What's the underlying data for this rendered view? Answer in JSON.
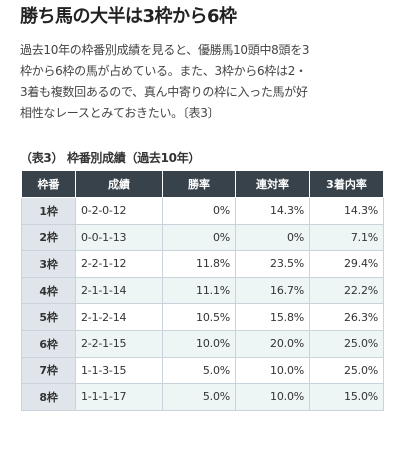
{
  "heading": "勝ち馬の大半は3枠から6枠",
  "paragraph_lines": [
    "過去10年の枠番別成績を見ると、優勝馬10頭中8頭を3",
    "枠から6枠の馬が占めている。また、3枠から6枠は2・",
    "3着も複数回あるので、真ん中寄りの枠に入った馬が好",
    "相性なレースとみておきたい。〔表3〕"
  ],
  "table_caption": "（表3） 枠番別成績（過去10年）",
  "table": {
    "headers": [
      "枠番",
      "成績",
      "勝率",
      "連対率",
      "3着内率"
    ],
    "rows": [
      [
        "1枠",
        "0-2-0-12",
        "0%",
        "14.3%",
        "14.3%"
      ],
      [
        "2枠",
        "0-0-1-13",
        "0%",
        "0%",
        "7.1%"
      ],
      [
        "3枠",
        "2-2-1-12",
        "11.8%",
        "23.5%",
        "29.4%"
      ],
      [
        "4枠",
        "2-1-1-14",
        "11.1%",
        "16.7%",
        "22.2%"
      ],
      [
        "5枠",
        "2-1-2-14",
        "10.5%",
        "15.8%",
        "26.3%"
      ],
      [
        "6枠",
        "2-2-1-15",
        "10.0%",
        "20.0%",
        "25.0%"
      ],
      [
        "7枠",
        "1-1-3-15",
        "5.0%",
        "10.0%",
        "25.0%"
      ],
      [
        "8枠",
        "1-1-1-17",
        "5.0%",
        "10.0%",
        "15.0%"
      ]
    ]
  },
  "colors": {
    "header_bg": "#37424b",
    "label_cell_bg": "#dfe5ea",
    "alt_row_bg": "#edf5f5"
  }
}
